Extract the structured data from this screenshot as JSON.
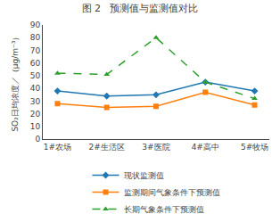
{
  "chart_data": {
    "type": "line",
    "title": "图 2   预测值与监测值对比",
    "ylabel": "SO₂日均浓度／（μg/m⁻³）",
    "categories": [
      "1#农场",
      "2#生活区",
      "3#医院",
      "4#高中",
      "5#牧场"
    ],
    "series": [
      {
        "name": "现状监测值",
        "values": [
          38,
          34,
          35,
          45,
          38
        ],
        "marker": "diamond",
        "line_style": "solid"
      },
      {
        "name": "监测期间气象条件下预测值",
        "values": [
          28,
          25,
          26,
          37,
          27
        ],
        "marker": "square",
        "line_style": "solid"
      },
      {
        "name": "长期气象条件下预测值",
        "values": [
          52,
          51,
          80,
          45,
          32
        ],
        "marker": "triangle",
        "line_style": "dashed"
      }
    ],
    "ylim": [
      0,
      90
    ],
    "yticks": [
      0,
      10,
      20,
      30,
      40,
      50,
      60,
      70,
      80,
      90
    ],
    "grid": false,
    "legend": "bottom"
  }
}
